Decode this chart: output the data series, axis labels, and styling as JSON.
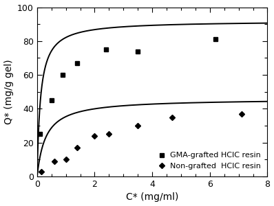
{
  "title": "",
  "xlabel": "C* (mg/ml)",
  "ylabel": "Q* (mg/g gel)",
  "xlim": [
    0,
    8
  ],
  "ylim": [
    0,
    100
  ],
  "xticks": [
    0,
    2,
    4,
    6,
    8
  ],
  "yticks": [
    0,
    20,
    40,
    60,
    80,
    100
  ],
  "gma_points_x": [
    0.1,
    0.5,
    0.9,
    1.4,
    2.4,
    3.5,
    6.2
  ],
  "gma_points_y": [
    25,
    45,
    60,
    67,
    75,
    74,
    81
  ],
  "non_points_x": [
    0.15,
    0.6,
    1.0,
    1.4,
    2.0,
    2.5,
    3.5,
    4.7,
    7.1
  ],
  "non_points_y": [
    3,
    9,
    10,
    17,
    24,
    25,
    30,
    35,
    37
  ],
  "gma_Qmax": 92.0,
  "gma_Kd": 0.12,
  "non_Qmax": 46.0,
  "non_Kd": 0.3,
  "line_color": "#000000",
  "marker_gma": "s",
  "marker_non": "D",
  "marker_size_gma": 5,
  "marker_size_non": 4,
  "legend_gma": "GMA-grafted HCIC resin",
  "legend_non": "Non-grafted  HCIC resin",
  "background_color": "#ffffff",
  "figure_width": 3.98,
  "figure_height": 3.0,
  "dpi": 100
}
